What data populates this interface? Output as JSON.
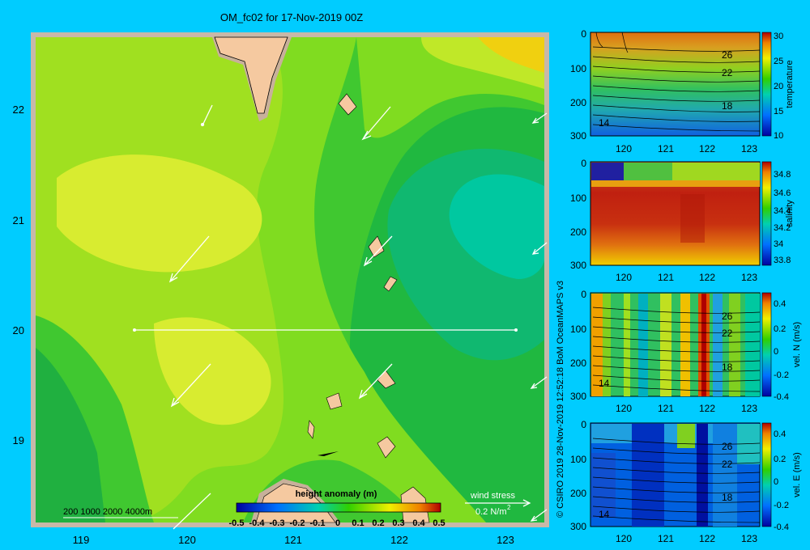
{
  "title": "OM_fc02 for 17-Nov-2019 00Z",
  "credit": "© CSIRO 2019   28-Nov-2019 12:52:18 BoM OceanMAPS v3",
  "colors": {
    "background": "#00ccff",
    "land": "#f5c9a0",
    "land_shadow": "#c8b09a",
    "frame": "#c8b8a8"
  },
  "map": {
    "x_ticks": [
      "119",
      "120",
      "121",
      "122",
      "123"
    ],
    "y_ticks": [
      "22",
      "21",
      "20",
      "19"
    ],
    "depth_legend": "200  1000  2000  4000m",
    "wind_label": "wind stress",
    "wind_unit": "0.2 N/m",
    "wind_unit_sup": "2",
    "colorbar_title": "height anomaly (m)",
    "colorbar_ticks": [
      "-0.5",
      "-0.4",
      "-0.3",
      "-0.2",
      "-0.1",
      "0",
      "0.1",
      "0.2",
      "0.3",
      "0.4",
      "0.5"
    ],
    "section_line": {
      "lat": 20.0,
      "lon_start": 119.5,
      "lon_end": 123.3
    }
  },
  "chart_data": [
    {
      "type": "heatmap",
      "title": "OM_fc02 for 17-Nov-2019 00Z",
      "xlabel": "",
      "ylabel": "",
      "variable": "height anomaly (m)",
      "xlim": [
        118.5,
        123.5
      ],
      "ylim": [
        18.2,
        22.7
      ],
      "crange": [
        -0.5,
        0.5
      ],
      "approx_values": [
        {
          "lon": 119.5,
          "lat": 21.3,
          "value": 0.2
        },
        {
          "lon": 120.3,
          "lat": 19.6,
          "value": 0.2
        },
        {
          "lon": 119.0,
          "lat": 22.2,
          "value": 0.1
        },
        {
          "lon": 122.8,
          "lat": 21.0,
          "value": -0.1
        },
        {
          "lon": 122.3,
          "lat": 19.8,
          "value": 0.0
        },
        {
          "lon": 123.2,
          "lat": 22.5,
          "value": 0.3
        }
      ]
    },
    {
      "type": "heatmap",
      "variable": "temperature",
      "x_ticks": [
        "120",
        "121",
        "122",
        "123"
      ],
      "y_ticks": [
        "0",
        "100",
        "200",
        "300"
      ],
      "cbar_ticks": [
        "30",
        "25",
        "20",
        "15",
        "10"
      ],
      "cbar_label": "temperature",
      "contour_labels": [
        "26",
        "22",
        "18",
        "14"
      ],
      "crange": [
        10,
        30
      ]
    },
    {
      "type": "heatmap",
      "variable": "salinity",
      "x_ticks": [
        "120",
        "121",
        "122",
        "123"
      ],
      "y_ticks": [
        "0",
        "100",
        "200",
        "300"
      ],
      "cbar_ticks": [
        "34.8",
        "34.6",
        "34.4",
        "34.2",
        "34",
        "33.8"
      ],
      "cbar_label": "salinity",
      "crange": [
        33.75,
        34.85
      ]
    },
    {
      "type": "heatmap",
      "variable": "vel. N (m/s)",
      "x_ticks": [
        "120",
        "121",
        "122",
        "123"
      ],
      "y_ticks": [
        "0",
        "100",
        "200",
        "300"
      ],
      "cbar_ticks": [
        "0.4",
        "0.2",
        "0",
        "-0.2",
        "-0.4"
      ],
      "cbar_label": "vel. N  (m/s)",
      "contour_labels": [
        "26",
        "22",
        "18",
        "14"
      ],
      "crange": [
        -0.45,
        0.45
      ]
    },
    {
      "type": "heatmap",
      "variable": "vel. E (m/s)",
      "x_ticks": [
        "120",
        "121",
        "122",
        "123"
      ],
      "y_ticks": [
        "0",
        "100",
        "200",
        "300"
      ],
      "cbar_ticks": [
        "0.4",
        "0.2",
        "0",
        "-0.2",
        "-0.4"
      ],
      "cbar_label": "vel. E  (m/s)",
      "contour_labels": [
        "26",
        "22",
        "18",
        "14"
      ],
      "crange": [
        -0.45,
        0.45
      ]
    }
  ]
}
